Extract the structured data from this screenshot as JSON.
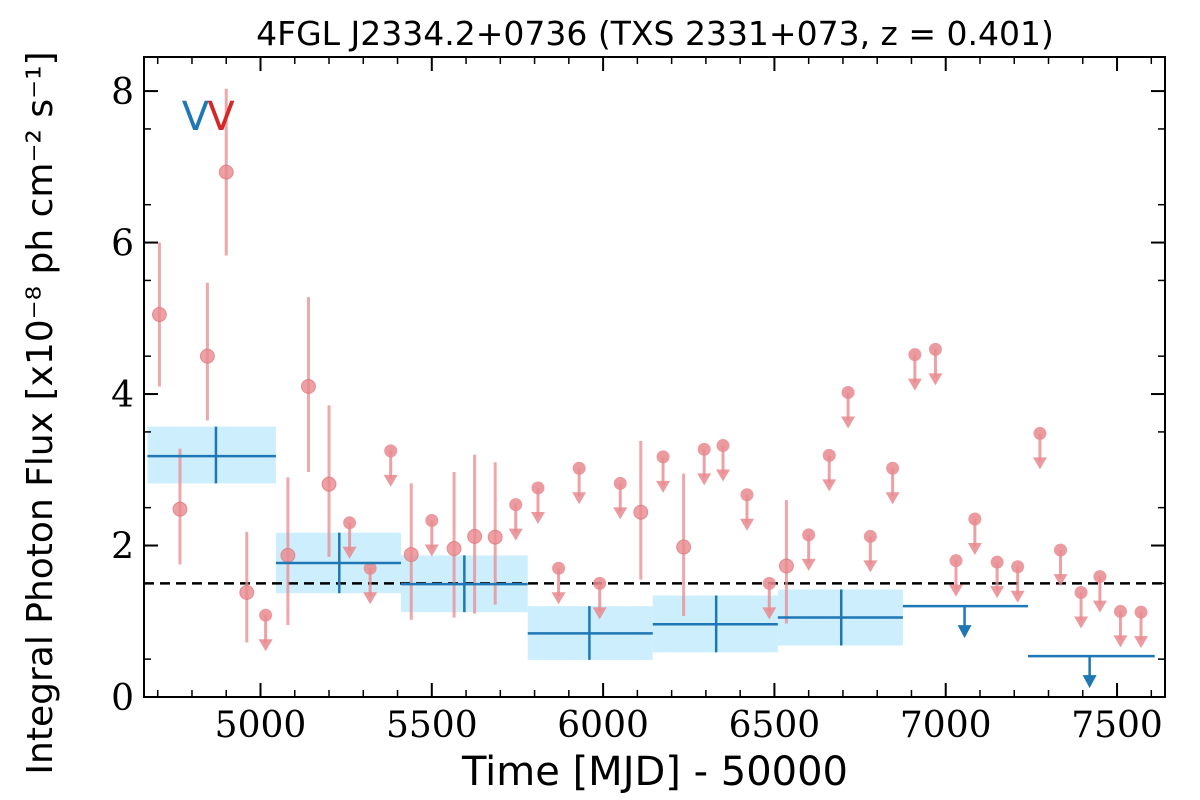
{
  "chart_data": {
    "type": "scatter",
    "title": "4FGL J2334.2+0736 (TXS 2331+073, z = 0.401)",
    "xlabel": "Time [MJD] - 50000",
    "ylabel": "Integral Photon Flux [x10⁻⁸ ph cm⁻² s⁻¹]",
    "xlim": [
      4660,
      7640
    ],
    "ylim": [
      0,
      8.45
    ],
    "xticks": [
      5000,
      5500,
      6000,
      6500,
      7000,
      7500
    ],
    "yticks": [
      0,
      2,
      4,
      6,
      8
    ],
    "xtick_labels": [
      "5000",
      "5500",
      "6000",
      "6500",
      "7000",
      "7500"
    ],
    "ytick_labels": [
      "0",
      "2",
      "4",
      "6",
      "8"
    ],
    "grid": false,
    "reference_line": {
      "y": 1.5,
      "style": "dashed",
      "color": "#000000"
    },
    "markers": [
      {
        "label": "V",
        "x": 4810,
        "color": "#1f77b4"
      },
      {
        "label": "V",
        "x": 4885,
        "color": "#d62728"
      }
    ],
    "colors": {
      "short_bins": "#e88a8e",
      "long_bins": "#1f77b4",
      "long_band": "#cdeefd",
      "blue_marker": "#1f77b4",
      "red_marker": "#d62728"
    },
    "series": [
      {
        "type": "points_with_errors",
        "points": [
          {
            "x": 4705,
            "y": 5.05,
            "lo": 4.1,
            "hi": 6.0
          },
          {
            "x": 4765,
            "y": 2.48,
            "lo": 1.75,
            "hi": 3.28
          },
          {
            "x": 4845,
            "y": 4.5,
            "lo": 3.65,
            "hi": 5.47
          },
          {
            "x": 4900,
            "y": 6.93,
            "lo": 5.83,
            "hi": 8.03
          },
          {
            "x": 4960,
            "y": 1.38,
            "lo": 0.72,
            "hi": 2.18
          },
          {
            "x": 5080,
            "y": 1.87,
            "lo": 0.95,
            "hi": 2.9
          },
          {
            "x": 5140,
            "y": 4.1,
            "lo": 2.97,
            "hi": 5.28
          },
          {
            "x": 5200,
            "y": 2.81,
            "lo": 1.85,
            "hi": 3.85
          },
          {
            "x": 5440,
            "y": 1.88,
            "lo": 1.02,
            "hi": 2.82
          },
          {
            "x": 5565,
            "y": 1.96,
            "lo": 1.05,
            "hi": 2.97
          },
          {
            "x": 5625,
            "y": 2.12,
            "lo": 1.1,
            "hi": 3.2
          },
          {
            "x": 5685,
            "y": 2.11,
            "lo": 1.22,
            "hi": 3.1
          },
          {
            "x": 6110,
            "y": 2.44,
            "lo": 1.55,
            "hi": 3.38
          },
          {
            "x": 6235,
            "y": 1.98,
            "lo": 1.07,
            "hi": 2.95
          },
          {
            "x": 6535,
            "y": 1.73,
            "lo": 0.97,
            "hi": 2.6
          }
        ]
      },
      {
        "type": "upper_limits",
        "points": [
          {
            "x": 5015,
            "y": 1.08
          },
          {
            "x": 5260,
            "y": 2.3
          },
          {
            "x": 5320,
            "y": 1.7
          },
          {
            "x": 5380,
            "y": 3.25
          },
          {
            "x": 5500,
            "y": 2.33
          },
          {
            "x": 5745,
            "y": 2.54
          },
          {
            "x": 5810,
            "y": 2.76
          },
          {
            "x": 5870,
            "y": 1.7
          },
          {
            "x": 5930,
            "y": 3.02
          },
          {
            "x": 5990,
            "y": 1.5
          },
          {
            "x": 6050,
            "y": 2.82
          },
          {
            "x": 6175,
            "y": 3.17
          },
          {
            "x": 6295,
            "y": 3.27
          },
          {
            "x": 6350,
            "y": 3.32
          },
          {
            "x": 6420,
            "y": 2.67
          },
          {
            "x": 6485,
            "y": 1.5
          },
          {
            "x": 6600,
            "y": 2.14
          },
          {
            "x": 6660,
            "y": 3.19
          },
          {
            "x": 6715,
            "y": 4.02
          },
          {
            "x": 6780,
            "y": 2.12
          },
          {
            "x": 6845,
            "y": 3.02
          },
          {
            "x": 6910,
            "y": 4.52
          },
          {
            "x": 6970,
            "y": 4.59
          },
          {
            "x": 7030,
            "y": 1.8
          },
          {
            "x": 7085,
            "y": 2.35
          },
          {
            "x": 7150,
            "y": 1.78
          },
          {
            "x": 7210,
            "y": 1.72
          },
          {
            "x": 7275,
            "y": 3.48
          },
          {
            "x": 7335,
            "y": 1.94
          },
          {
            "x": 7395,
            "y": 1.38
          },
          {
            "x": 7450,
            "y": 1.59
          },
          {
            "x": 7510,
            "y": 1.13
          },
          {
            "x": 7570,
            "y": 1.12
          }
        ]
      },
      {
        "type": "binned_measurements",
        "bins": [
          {
            "x0": 4670,
            "x1": 5045,
            "xc": 4870,
            "y": 3.18,
            "lo": 2.82,
            "hi": 3.57
          },
          {
            "x0": 5045,
            "x1": 5410,
            "xc": 5230,
            "y": 1.77,
            "lo": 1.37,
            "hi": 2.17
          },
          {
            "x0": 5410,
            "x1": 5780,
            "xc": 5595,
            "y": 1.49,
            "lo": 1.12,
            "hi": 1.87
          },
          {
            "x0": 5780,
            "x1": 6145,
            "xc": 5960,
            "y": 0.84,
            "lo": 0.49,
            "hi": 1.2
          },
          {
            "x0": 6145,
            "x1": 6510,
            "xc": 6330,
            "y": 0.96,
            "lo": 0.59,
            "hi": 1.34
          },
          {
            "x0": 6510,
            "x1": 6875,
            "xc": 6695,
            "y": 1.05,
            "lo": 0.68,
            "hi": 1.42
          }
        ]
      },
      {
        "type": "binned_upper_limits",
        "bins": [
          {
            "x0": 6875,
            "x1": 7240,
            "xc": 7055,
            "y": 1.2
          },
          {
            "x0": 7240,
            "x1": 7610,
            "xc": 7420,
            "y": 0.54
          }
        ]
      }
    ]
  }
}
